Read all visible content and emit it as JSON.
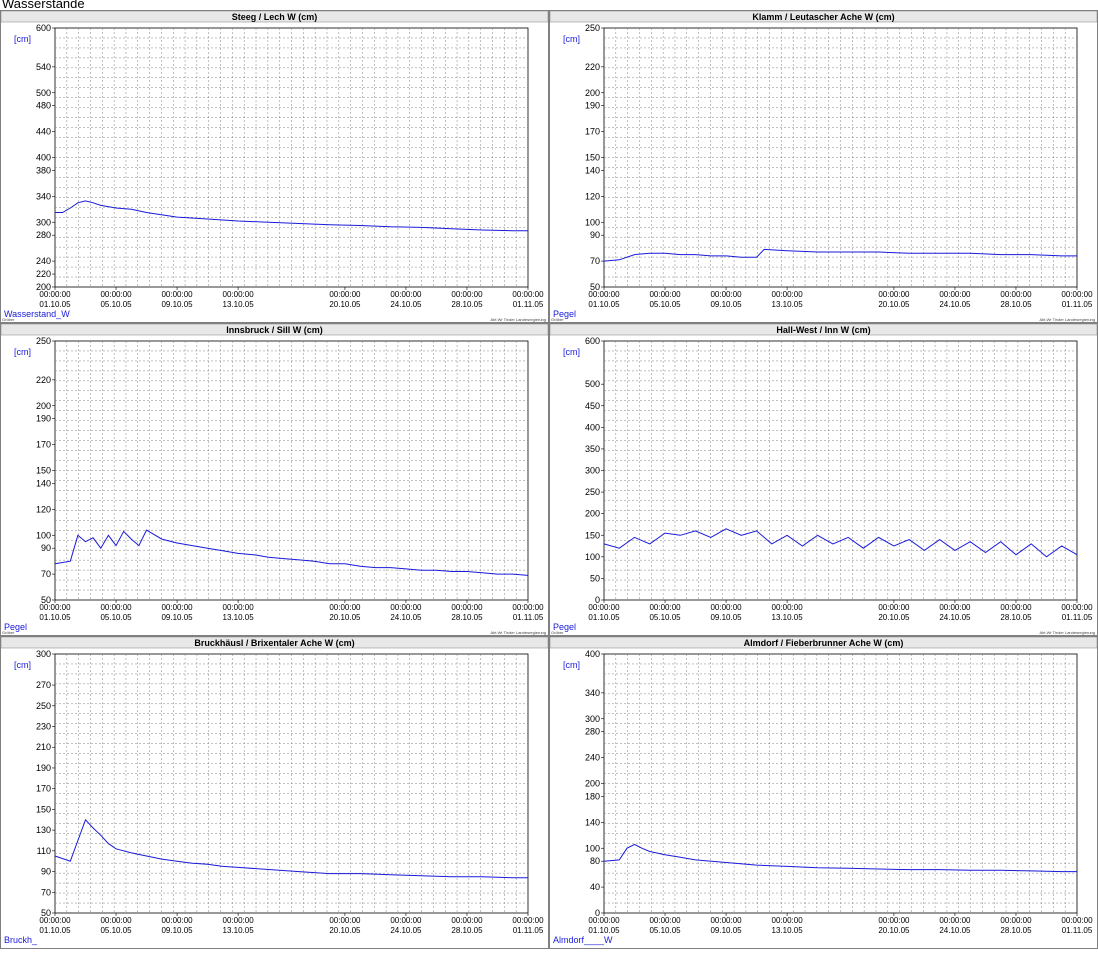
{
  "page": {
    "title": "Wasserstände"
  },
  "common": {
    "unit": "[cm]",
    "x_ticks": [
      {
        "time": "00:00:00",
        "date": "01.10.05"
      },
      {
        "time": "00:00:00",
        "date": "05.10.05"
      },
      {
        "time": "00:00:00",
        "date": "09.10.05"
      },
      {
        "time": "00:00:00",
        "date": "13.10.05"
      },
      {
        "time": "00:00:00",
        "date": "20.10.05"
      },
      {
        "time": "00:00:00",
        "date": "24.10.05"
      },
      {
        "time": "00:00:00",
        "date": "28.10.05"
      },
      {
        "time": "00:00:00",
        "date": "01.11.05"
      }
    ],
    "footer_left": "Gröber",
    "footer_right": "Abt.Wr Tiroler Landesregierung",
    "colors": {
      "line": "#1a1adb",
      "grid": "#808080",
      "border": "#808080"
    }
  },
  "chart_data": [
    {
      "type": "line",
      "title": "Steeg  / Lech W (cm)",
      "bottom_label": "Wasserstand_W",
      "x_start": "01.10.05",
      "x_end": "01.11.05",
      "ylim": [
        200,
        600
      ],
      "y_ticks": [
        200,
        220,
        240,
        280,
        300,
        340,
        380,
        400,
        440,
        480,
        500,
        540,
        600
      ],
      "series": [
        {
          "values": [
            [
              0,
              315
            ],
            [
              0.5,
              315
            ],
            [
              1,
              322
            ],
            [
              1.5,
              330
            ],
            [
              2,
              333
            ],
            [
              2.5,
              330
            ],
            [
              3,
              326
            ],
            [
              4,
              322
            ],
            [
              5,
              320
            ],
            [
              6,
              315
            ],
            [
              8,
              308
            ],
            [
              10,
              305
            ],
            [
              12,
              302
            ],
            [
              14,
              300
            ],
            [
              16,
              298
            ],
            [
              18,
              296
            ],
            [
              20,
              295
            ],
            [
              22,
              293
            ],
            [
              24,
              292
            ],
            [
              26,
              290
            ],
            [
              28,
              288
            ],
            [
              30,
              287
            ],
            [
              31,
              287
            ]
          ]
        }
      ]
    },
    {
      "type": "line",
      "title": "Klamm / Leutascher Ache W (cm)",
      "bottom_label": "Pegel",
      "x_start": "01.10.05",
      "x_end": "01.11.05",
      "ylim": [
        50,
        250
      ],
      "y_ticks": [
        50,
        70,
        90,
        100,
        120,
        140,
        150,
        170,
        190,
        200,
        220,
        250
      ],
      "series": [
        {
          "values": [
            [
              0,
              70
            ],
            [
              1,
              71
            ],
            [
              2,
              75
            ],
            [
              3,
              76
            ],
            [
              4,
              76
            ],
            [
              5,
              75
            ],
            [
              6,
              75
            ],
            [
              7,
              74
            ],
            [
              8,
              74
            ],
            [
              9,
              73
            ],
            [
              10,
              73
            ],
            [
              10.5,
              79
            ],
            [
              12,
              78
            ],
            [
              14,
              77
            ],
            [
              16,
              77
            ],
            [
              18,
              77
            ],
            [
              20,
              76
            ],
            [
              22,
              76
            ],
            [
              24,
              76
            ],
            [
              26,
              75
            ],
            [
              28,
              75
            ],
            [
              30,
              74
            ],
            [
              31,
              74
            ]
          ]
        }
      ]
    },
    {
      "type": "line",
      "title": "Innsbruck / Sill W (cm)",
      "bottom_label": "Pegel",
      "x_start": "01.10.05",
      "x_end": "01.11.05",
      "ylim": [
        50,
        250
      ],
      "y_ticks": [
        50,
        70,
        90,
        100,
        120,
        140,
        150,
        170,
        190,
        200,
        220,
        250
      ],
      "series": [
        {
          "values": [
            [
              0,
              78
            ],
            [
              1,
              80
            ],
            [
              1.5,
              100
            ],
            [
              2,
              95
            ],
            [
              2.5,
              98
            ],
            [
              3,
              90
            ],
            [
              3.5,
              100
            ],
            [
              4,
              92
            ],
            [
              4.5,
              103
            ],
            [
              5,
              97
            ],
            [
              5.5,
              92
            ],
            [
              6,
              104
            ],
            [
              7,
              97
            ],
            [
              8,
              94
            ],
            [
              9,
              92
            ],
            [
              10,
              90
            ],
            [
              11,
              88
            ],
            [
              12,
              86
            ],
            [
              13,
              85
            ],
            [
              14,
              83
            ],
            [
              15,
              82
            ],
            [
              16,
              81
            ],
            [
              17,
              80
            ],
            [
              18,
              78
            ],
            [
              19,
              78
            ],
            [
              20,
              76
            ],
            [
              21,
              75
            ],
            [
              22,
              75
            ],
            [
              23,
              74
            ],
            [
              24,
              73
            ],
            [
              25,
              73
            ],
            [
              26,
              72
            ],
            [
              27,
              72
            ],
            [
              28,
              71
            ],
            [
              29,
              70
            ],
            [
              30,
              70
            ],
            [
              31,
              69
            ]
          ]
        }
      ]
    },
    {
      "type": "line",
      "title": "Hall-West / Inn W (cm)",
      "bottom_label": "Pegel",
      "x_start": "01.10.05",
      "x_end": "01.11.05",
      "ylim": [
        0,
        600
      ],
      "y_ticks": [
        0,
        50,
        100,
        150,
        200,
        250,
        300,
        350,
        400,
        450,
        500,
        600
      ],
      "series": [
        {
          "values": [
            [
              0,
              130
            ],
            [
              1,
              120
            ],
            [
              2,
              145
            ],
            [
              3,
              130
            ],
            [
              4,
              155
            ],
            [
              5,
              150
            ],
            [
              6,
              160
            ],
            [
              7,
              145
            ],
            [
              8,
              165
            ],
            [
              9,
              150
            ],
            [
              10,
              160
            ],
            [
              11,
              130
            ],
            [
              12,
              150
            ],
            [
              13,
              125
            ],
            [
              14,
              150
            ],
            [
              15,
              130
            ],
            [
              16,
              145
            ],
            [
              17,
              120
            ],
            [
              18,
              145
            ],
            [
              19,
              125
            ],
            [
              20,
              140
            ],
            [
              21,
              115
            ],
            [
              22,
              140
            ],
            [
              23,
              115
            ],
            [
              24,
              135
            ],
            [
              25,
              110
            ],
            [
              26,
              135
            ],
            [
              27,
              105
            ],
            [
              28,
              130
            ],
            [
              29,
              100
            ],
            [
              30,
              125
            ],
            [
              31,
              105
            ]
          ]
        }
      ]
    },
    {
      "type": "line",
      "title": "Bruckhäusl / Brixentaler Ache W (cm)",
      "bottom_label": "Bruckh_",
      "x_start": "01.10.05",
      "x_end": "01.11.05",
      "ylim": [
        50,
        300
      ],
      "y_ticks": [
        50,
        70,
        90,
        110,
        130,
        150,
        170,
        190,
        210,
        230,
        250,
        270,
        300
      ],
      "series": [
        {
          "values": [
            [
              0,
              105
            ],
            [
              1,
              100
            ],
            [
              1.5,
              120
            ],
            [
              2,
              140
            ],
            [
              2.5,
              132
            ],
            [
              3,
              125
            ],
            [
              3.5,
              117
            ],
            [
              4,
              112
            ],
            [
              5,
              108
            ],
            [
              6,
              105
            ],
            [
              7,
              102
            ],
            [
              8,
              100
            ],
            [
              9,
              98
            ],
            [
              10,
              97
            ],
            [
              11,
              95
            ],
            [
              12,
              94
            ],
            [
              14,
              92
            ],
            [
              16,
              90
            ],
            [
              18,
              88
            ],
            [
              20,
              88
            ],
            [
              22,
              87
            ],
            [
              24,
              86
            ],
            [
              26,
              85
            ],
            [
              28,
              85
            ],
            [
              30,
              84
            ],
            [
              31,
              84
            ]
          ]
        }
      ]
    },
    {
      "type": "line",
      "title": "Almdorf / Fieberbrunner Ache W (cm)",
      "bottom_label": "Almdorf____W",
      "x_start": "01.10.05",
      "x_end": "01.11.05",
      "ylim": [
        0,
        400
      ],
      "y_ticks": [
        0,
        40,
        80,
        100,
        140,
        180,
        200,
        240,
        280,
        300,
        340,
        400
      ],
      "series": [
        {
          "values": [
            [
              0,
              80
            ],
            [
              1,
              82
            ],
            [
              1.5,
              100
            ],
            [
              2,
              106
            ],
            [
              2.5,
              100
            ],
            [
              3,
              95
            ],
            [
              4,
              90
            ],
            [
              5,
              86
            ],
            [
              6,
              82
            ],
            [
              8,
              78
            ],
            [
              10,
              74
            ],
            [
              12,
              72
            ],
            [
              14,
              70
            ],
            [
              16,
              69
            ],
            [
              18,
              68
            ],
            [
              20,
              67
            ],
            [
              22,
              67
            ],
            [
              24,
              66
            ],
            [
              26,
              66
            ],
            [
              28,
              65
            ],
            [
              30,
              64
            ],
            [
              31,
              64
            ]
          ]
        }
      ]
    }
  ]
}
